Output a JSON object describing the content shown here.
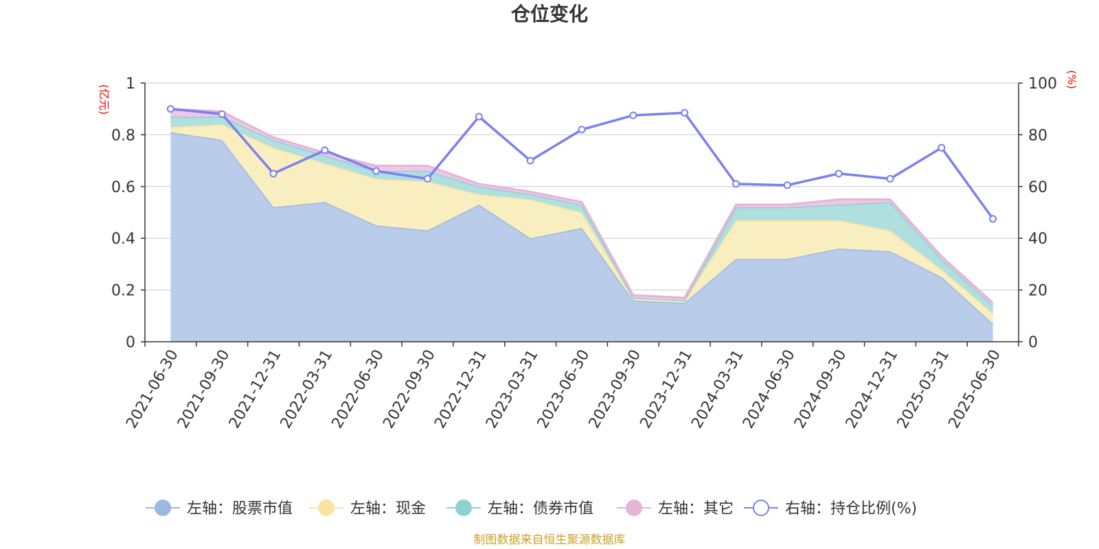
{
  "chart_data": {
    "type": "area",
    "title": "仓位变化",
    "left_unit": "(亿元)",
    "right_unit": "(%)",
    "left_ylim": [
      0,
      1
    ],
    "left_ticks": [
      "0",
      "0.2",
      "0.4",
      "0.6",
      "0.8",
      "1"
    ],
    "right_ylim": [
      0,
      100
    ],
    "right_ticks": [
      "0",
      "20",
      "40",
      "60",
      "80",
      "100"
    ],
    "categories": [
      "2021-06-30",
      "2021-09-30",
      "2021-12-31",
      "2022-03-31",
      "2022-06-30",
      "2022-09-30",
      "2022-12-31",
      "2023-03-31",
      "2023-06-30",
      "2023-09-30",
      "2023-12-31",
      "2024-03-31",
      "2024-06-30",
      "2024-09-30",
      "2024-12-31",
      "2025-03-31",
      "2025-06-30"
    ],
    "stacked_series": [
      {
        "name": "左轴：股票市值",
        "color": "#9db7e0",
        "fill": "#b9cdea",
        "values": [
          0.81,
          0.78,
          0.52,
          0.54,
          0.45,
          0.43,
          0.53,
          0.4,
          0.44,
          0.16,
          0.15,
          0.32,
          0.32,
          0.36,
          0.35,
          0.25,
          0.07
        ]
      },
      {
        "name": "左轴：现金",
        "color": "#f7e4a0",
        "fill": "#f9eec0",
        "values": [
          0.02,
          0.06,
          0.23,
          0.15,
          0.18,
          0.19,
          0.04,
          0.15,
          0.06,
          0.01,
          0.01,
          0.15,
          0.15,
          0.11,
          0.08,
          0.03,
          0.04
        ]
      },
      {
        "name": "左轴：债券市值",
        "color": "#8fd0d0",
        "fill": "#b0dfe0",
        "values": [
          0.04,
          0.03,
          0.03,
          0.03,
          0.03,
          0.04,
          0.03,
          0.02,
          0.03,
          0.0,
          0.0,
          0.05,
          0.05,
          0.06,
          0.11,
          0.04,
          0.03
        ]
      },
      {
        "name": "左轴：其它",
        "color": "#e6b3d9",
        "fill": "#eec8e5",
        "values": [
          0.03,
          0.02,
          0.01,
          0.01,
          0.02,
          0.02,
          0.01,
          0.01,
          0.01,
          0.01,
          0.01,
          0.01,
          0.01,
          0.02,
          0.01,
          0.01,
          0.01
        ]
      }
    ],
    "line_series": {
      "name": "右轴：持仓比例(%)",
      "color": "#7b7ff0",
      "values": [
        90,
        88,
        65,
        74,
        66,
        63,
        87,
        70,
        82,
        87.5,
        88.5,
        61,
        60.5,
        65,
        63,
        75,
        47.5
      ]
    },
    "source": "制图数据来自恒生聚源数据库"
  }
}
